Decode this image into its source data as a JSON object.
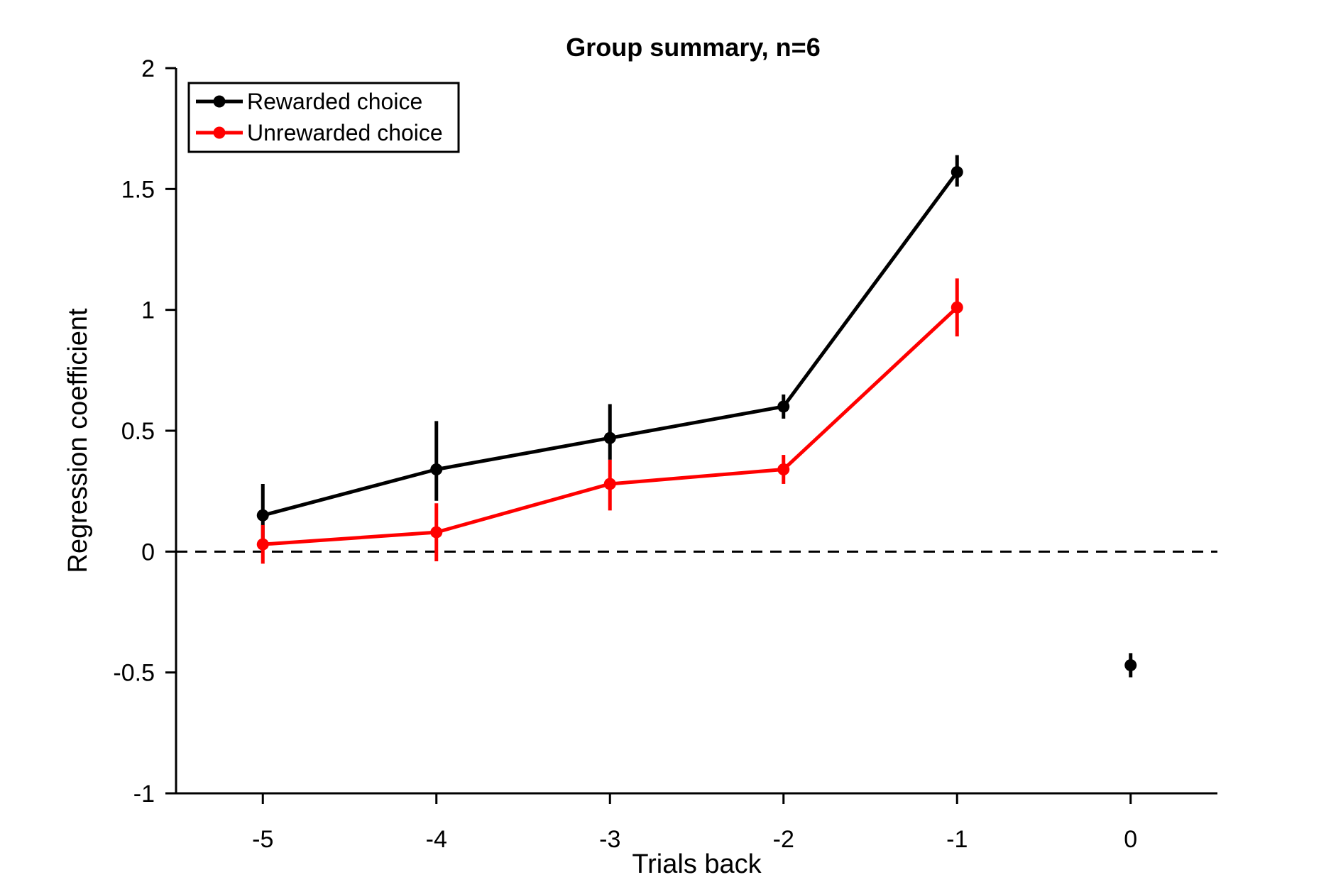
{
  "chart_data": {
    "type": "line",
    "title": "Group summary, n=6",
    "xlabel": "Trials back",
    "ylabel": "Regression coefficient",
    "xlim": [
      -5.5,
      0.5
    ],
    "ylim": [
      -1,
      2
    ],
    "x_ticks": [
      -5,
      -4,
      -3,
      -2,
      -1,
      0
    ],
    "x_tick_labels": [
      "-5",
      "-4",
      "-3",
      "-2",
      "-1",
      "0"
    ],
    "y_ticks": [
      -1,
      -0.5,
      0,
      0.5,
      1,
      1.5,
      2
    ],
    "y_tick_labels": [
      "-1",
      "-0.5",
      "0",
      "0.5",
      "1",
      "1.5",
      "2"
    ],
    "reference_line": {
      "y": 0,
      "style": "dashed",
      "color": "#000000"
    },
    "legend_position": "top-left",
    "grid": false,
    "series": [
      {
        "name": "Rewarded choice",
        "color": "#000000",
        "x": [
          -5,
          -4,
          -3,
          -2,
          -1
        ],
        "y": [
          0.15,
          0.34,
          0.47,
          0.6,
          1.57
        ],
        "err_low": [
          0.04,
          0.21,
          0.38,
          0.55,
          1.51
        ],
        "err_high": [
          0.28,
          0.54,
          0.61,
          0.65,
          1.64
        ]
      },
      {
        "name": "Unrewarded choice",
        "color": "#ff0000",
        "x": [
          -5,
          -4,
          -3,
          -2,
          -1
        ],
        "y": [
          0.03,
          0.08,
          0.28,
          0.34,
          1.01
        ],
        "err_low": [
          -0.05,
          -0.04,
          0.17,
          0.28,
          0.89
        ],
        "err_high": [
          0.11,
          0.2,
          0.38,
          0.4,
          1.13
        ]
      },
      {
        "name": "",
        "color": "#000000",
        "x": [
          0
        ],
        "y": [
          -0.47
        ],
        "err_low": [
          -0.52
        ],
        "err_high": [
          -0.42
        ]
      }
    ]
  }
}
